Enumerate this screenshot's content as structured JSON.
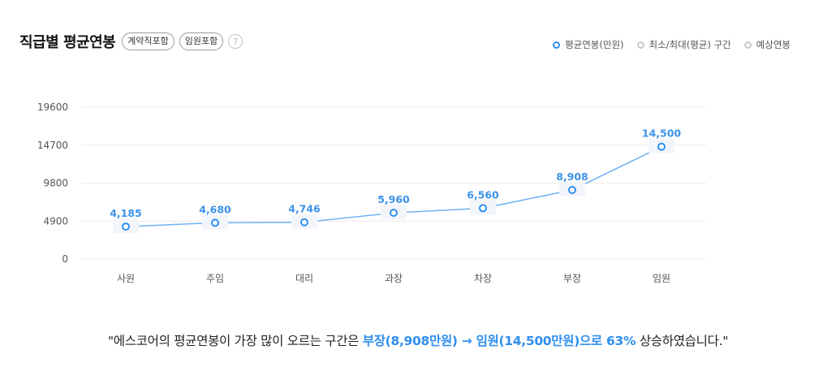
{
  "header": {
    "title": "직급별 평균연봉",
    "pill_contract": "계약직포함",
    "pill_exec": "임원포함",
    "help": "?"
  },
  "legend": [
    {
      "label": "평균연봉(만원)",
      "active": true
    },
    {
      "label": "최소/최대(평균) 구간",
      "active": false
    },
    {
      "label": "예상연봉",
      "active": false
    }
  ],
  "colors": {
    "line": "#6fb2f2",
    "label": "#3c93ea",
    "accent": "#2f8fef"
  },
  "chart_data": {
    "type": "line",
    "title": "직급별 평균연봉",
    "xlabel": "",
    "ylabel": "",
    "categories": [
      "사원",
      "주임",
      "대리",
      "과장",
      "차장",
      "부장",
      "임원"
    ],
    "series": [
      {
        "name": "평균연봉(만원)",
        "values": [
          4185,
          4680,
          4746,
          5960,
          6560,
          8908,
          14500
        ],
        "labels": [
          "4,185",
          "4,680",
          "4,746",
          "5,960",
          "6,560",
          "8,908",
          "14,500"
        ]
      }
    ],
    "ylim": [
      0,
      19600
    ],
    "yticks": [
      0,
      4900,
      9800,
      14700,
      19600
    ],
    "grid": true,
    "legend_position": "top-right"
  },
  "summary": {
    "prefix": "\"에스코어의 평균연봉이 가장 많이 오르는 구간은 ",
    "highlight": "부장(8,908만원) → 임원(14,500만원)으로 63%",
    "suffix": " 상승하였습니다.\""
  }
}
